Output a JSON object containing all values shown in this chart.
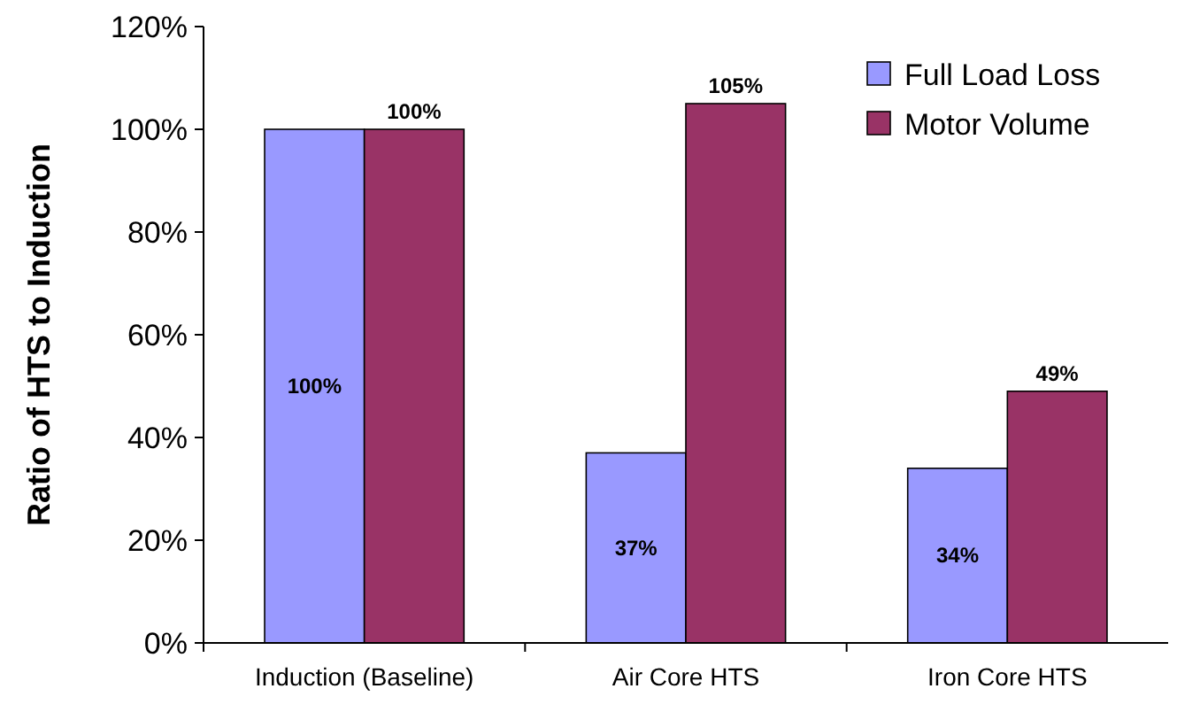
{
  "chart_data": {
    "type": "bar",
    "ylabel": "Ratio of HTS to Induction",
    "categories": [
      "Induction (Baseline)",
      "Air Core HTS",
      "Iron Core HTS"
    ],
    "series": [
      {
        "name": "Full Load Loss",
        "color": "#9999ff",
        "values": [
          100,
          37,
          34
        ],
        "value_labels": [
          "100%",
          "37%",
          "34%"
        ]
      },
      {
        "name": "Motor Volume",
        "color": "#993366",
        "values": [
          100,
          105,
          49
        ],
        "value_labels": [
          "100%",
          "105%",
          "49%"
        ]
      }
    ],
    "ylim": [
      0,
      120
    ],
    "yticks": [
      {
        "value": 0,
        "label": "0%"
      },
      {
        "value": 20,
        "label": "20%"
      },
      {
        "value": 40,
        "label": "40%"
      },
      {
        "value": 60,
        "label": "60%"
      },
      {
        "value": 80,
        "label": "80%"
      },
      {
        "value": 100,
        "label": "100%"
      },
      {
        "value": 120,
        "label": "120%"
      }
    ],
    "grid": false,
    "legend": "top right"
  }
}
